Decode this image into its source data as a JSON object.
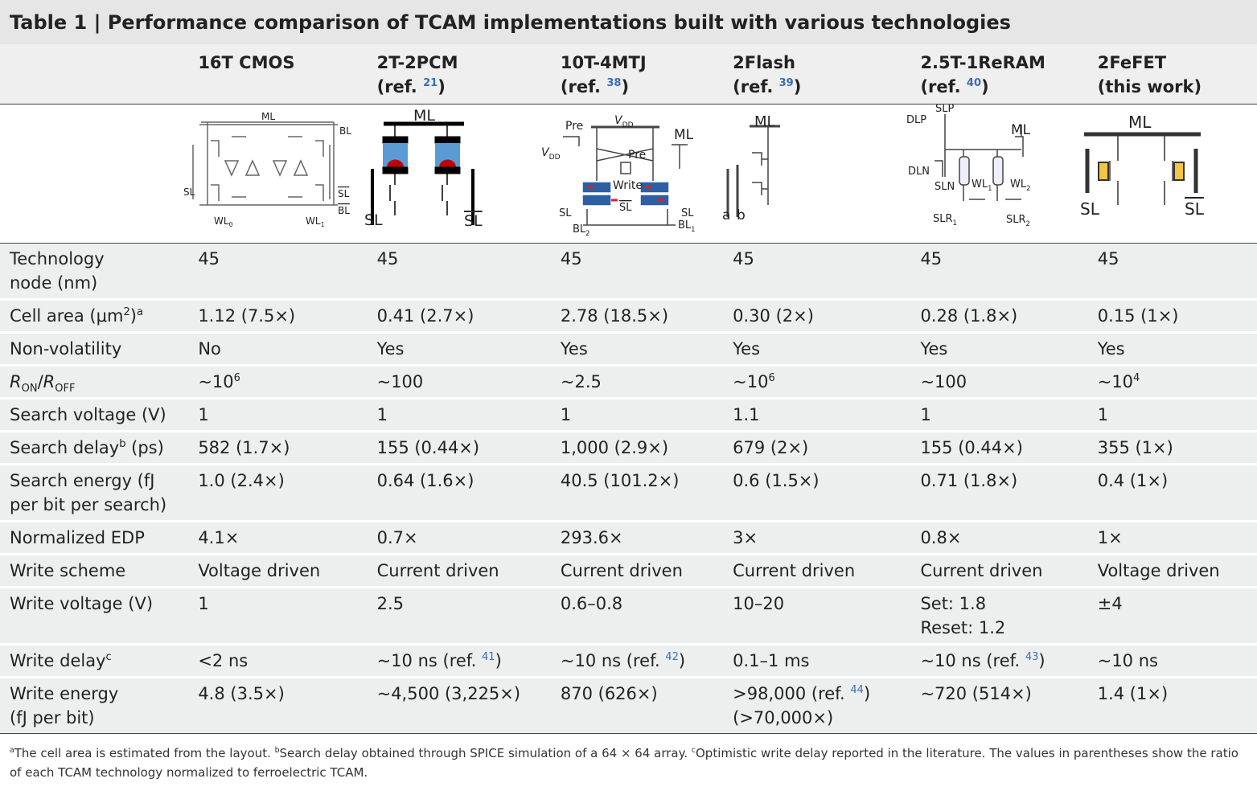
{
  "title": {
    "label": "Table 1 |",
    "text": "Performance comparison of TCAM implementations built with various technologies"
  },
  "table": {
    "header": [
      [
        [
          "16T CMOS"
        ]
      ],
      [
        [
          "2T-2PCM"
        ],
        [
          "(ref. ",
          {
            "ref": "21"
          },
          ")"
        ]
      ],
      [
        [
          "10T-4MTJ"
        ],
        [
          "(ref. ",
          {
            "ref": "38"
          },
          ")"
        ]
      ],
      [
        [
          "2Flash"
        ],
        [
          "(ref. ",
          {
            "ref": "39"
          },
          ")"
        ]
      ],
      [
        [
          "2.5T-1ReRAM"
        ],
        [
          "(ref. ",
          {
            "ref": "40"
          },
          ")"
        ]
      ],
      [
        [
          "2FeFET"
        ],
        [
          "(this work)"
        ]
      ]
    ],
    "diagrams": [
      [
        [
          "ML"
        ],
        [
          "BL"
        ],
        [
          "SL"
        ],
        [
          {
            "over": "SL"
          }
        ],
        [
          {
            "over": "BL"
          }
        ],
        [
          "WL",
          {
            "sub": "0"
          }
        ],
        [
          "WL",
          {
            "sub": "1"
          }
        ]
      ],
      [
        [
          "ML"
        ],
        [
          "SL"
        ],
        [
          {
            "over": "SL"
          }
        ]
      ],
      [
        [
          "Pre"
        ],
        [
          {
            "i": "V"
          },
          {
            "sub": "DD"
          }
        ],
        [
          {
            "i": "V"
          },
          {
            "sub": "DD"
          }
        ],
        [
          "ML"
        ],
        [
          "Pre"
        ],
        [
          "Write"
        ],
        [
          "SL"
        ],
        [
          {
            "over": "SL"
          }
        ],
        [
          "SL"
        ],
        [
          "BL",
          {
            "sub": "2"
          }
        ],
        [
          "BL",
          {
            "sub": "1"
          }
        ]
      ],
      [
        [
          "ML"
        ],
        [
          "a"
        ],
        [
          "b"
        ]
      ],
      [
        [
          "SLP"
        ],
        [
          "DLP"
        ],
        [
          "ML"
        ],
        [
          "DLN"
        ],
        [
          "SLN"
        ],
        [
          "WL",
          {
            "sub": "1"
          }
        ],
        [
          "WL",
          {
            "sub": "2"
          }
        ],
        [
          "SLR",
          {
            "sub": "1"
          }
        ],
        [
          "SLR",
          {
            "sub": "2"
          }
        ]
      ],
      [
        [
          "ML"
        ],
        [
          "SL"
        ],
        [
          {
            "over": "SL"
          }
        ]
      ]
    ],
    "rows": [
      [
        [
          [
            "Technology"
          ],
          [
            "node (nm)"
          ]
        ],
        "45",
        "45",
        "45",
        "45",
        "45",
        "45"
      ],
      [
        [
          "Cell area (μm",
          {
            "sup": "2"
          },
          ")",
          {
            "sup": "a"
          }
        ],
        "1.12 (7.5×)",
        "0.41 (2.7×)",
        "2.78 (18.5×)",
        "0.30 (2×)",
        "0.28 (1.8×)",
        "0.15 (1×)"
      ],
      [
        "Non-volatility",
        "No",
        "Yes",
        "Yes",
        "Yes",
        "Yes",
        "Yes"
      ],
      [
        [
          {
            "i": "R"
          },
          {
            "sub": "ON"
          },
          "/",
          {
            "i": "R"
          },
          {
            "sub": "OFF"
          }
        ],
        [
          "~10",
          {
            "sup": "6"
          }
        ],
        "~100",
        "~2.5",
        [
          "~10",
          {
            "sup": "6"
          }
        ],
        "~100",
        [
          "~10",
          {
            "sup": "4"
          }
        ]
      ],
      [
        "Search voltage (V)",
        "1",
        "1",
        "1",
        "1.1",
        "1",
        "1"
      ],
      [
        [
          "Search delay",
          {
            "sup": "b"
          },
          " (ps)"
        ],
        "582 (1.7×)",
        "155 (0.44×)",
        "1,000 (2.9×)",
        "679 (2×)",
        "155 (0.44×)",
        "355 (1×)"
      ],
      [
        [
          [
            "Search energy (fJ"
          ],
          [
            "per bit per search)"
          ]
        ],
        "1.0 (2.4×)",
        "0.64 (1.6×)",
        "40.5 (101.2×)",
        "0.6 (1.5×)",
        "0.71 (1.8×)",
        "0.4 (1×)"
      ],
      [
        "Normalized EDP",
        "4.1×",
        "0.7×",
        "293.6×",
        "3×",
        "0.8×",
        "1×"
      ],
      [
        "Write scheme",
        "Voltage driven",
        "Current driven",
        "Current driven",
        "Current driven",
        "Current driven",
        "Voltage driven"
      ],
      [
        "Write voltage (V)",
        "1",
        "2.5",
        "0.6–0.8",
        "10–20",
        [
          [
            "Set: 1.8"
          ],
          [
            "Reset: 1.2"
          ]
        ],
        "±4"
      ],
      [
        [
          "Write delay",
          {
            "sup": "c"
          }
        ],
        "<2 ns",
        [
          "~10 ns (ref. ",
          {
            "ref": "41"
          },
          ")"
        ],
        [
          "~10 ns (ref. ",
          {
            "ref": "42"
          },
          ")"
        ],
        "0.1–1 ms",
        [
          "~10 ns (ref. ",
          {
            "ref": "43"
          },
          ")"
        ],
        "~10 ns"
      ],
      [
        [
          [
            "Write energy"
          ],
          [
            "(fJ per bit)"
          ]
        ],
        "4.8 (3.5×)",
        "~4,500 (3,225×)",
        "870 (626×)",
        [
          [
            ">98,000 (ref. ",
            {
              "ref": "44"
            },
            ")"
          ],
          [
            "(>70,000×)"
          ]
        ],
        "~720 (514×)",
        "1.4 (1×)"
      ]
    ]
  },
  "footnote": [
    {
      "sup": "a"
    },
    "The cell area is estimated from the layout. ",
    {
      "sup": "b"
    },
    "Search delay obtained through SPICE simulation of a 64 × 64 array. ",
    {
      "sup": "c"
    },
    "Optimistic write delay reported in the literature. The values in parentheses show the ratio of each TCAM technology normalized to ferroelectric TCAM."
  ]
}
